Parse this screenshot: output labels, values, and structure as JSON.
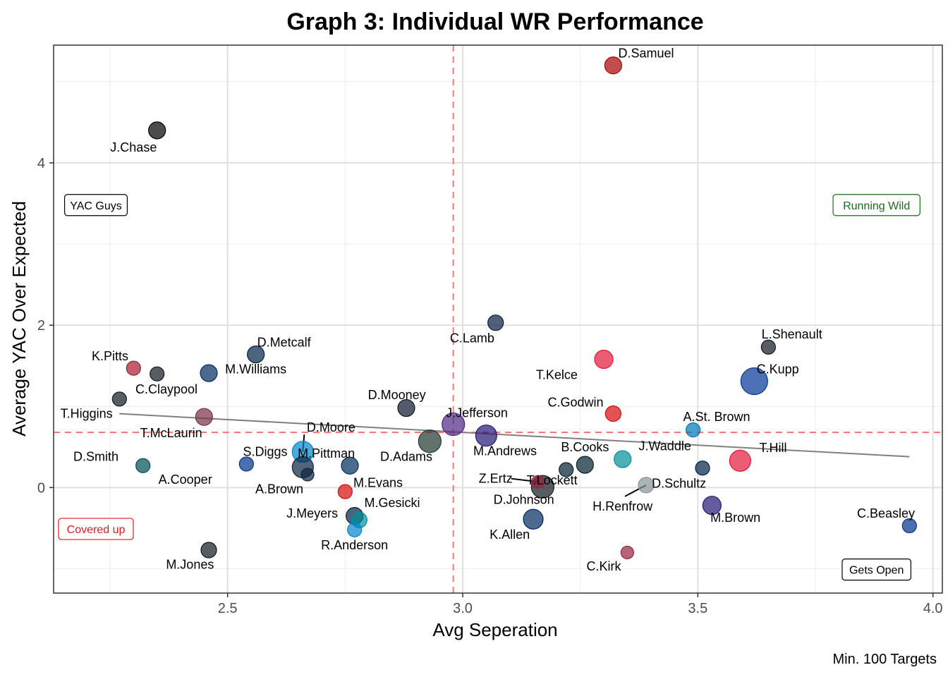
{
  "chart_data": {
    "type": "scatter",
    "title": "Graph 3: Individual WR Performance",
    "xlabel": "Avg Seperation",
    "ylabel": "Average YAC Over Expected",
    "caption": "Min. 100 Targets",
    "xlim": [
      2.13,
      4.02
    ],
    "ylim": [
      -1.3,
      5.45
    ],
    "x_ticks": [
      2.5,
      3.0,
      3.5,
      4.0
    ],
    "x_tick_labels": [
      "2.5",
      "3.0",
      "3.5",
      "4.0"
    ],
    "y_ticks": [
      0,
      2,
      4
    ],
    "y_tick_labels": [
      "0",
      "2",
      "4"
    ],
    "grid": true,
    "reference_lines": {
      "x": 2.98,
      "y": 0.68,
      "color": "#f8766d",
      "style": "dashed"
    },
    "trend_line": {
      "x": [
        2.27,
        3.95
      ],
      "y": [
        0.91,
        0.38
      ],
      "color": "#808080"
    },
    "quadrant_labels": [
      {
        "text": "YAC Guys",
        "color": "#000000",
        "x": 2.22,
        "y": 3.48
      },
      {
        "text": "Running Wild",
        "color": "#1a6b1a",
        "x": 3.88,
        "y": 3.48
      },
      {
        "text": "Covered up",
        "color": "#e41a1c",
        "x": 2.22,
        "y": -0.51
      },
      {
        "text": "Gets Open",
        "color": "#000000",
        "x": 3.88,
        "y": -1.01
      }
    ],
    "points": [
      {
        "name": "D.Samuel",
        "x": 3.32,
        "y": 5.2,
        "size": 12,
        "color": "#aa0000",
        "lx": 3.39,
        "ly": 5.35
      },
      {
        "name": "J.Chase",
        "x": 2.35,
        "y": 4.4,
        "size": 12,
        "color": "#000000",
        "lx": 2.3,
        "ly": 4.19
      },
      {
        "name": "C.Lamb",
        "x": 3.07,
        "y": 2.03,
        "size": 11,
        "color": "#041e42",
        "lx": 3.02,
        "ly": 1.84
      },
      {
        "name": "L.Shenault",
        "x": 3.65,
        "y": 1.73,
        "size": 10,
        "color": "#101820",
        "lx": 3.7,
        "ly": 1.89
      },
      {
        "name": "T.Kelce",
        "x": 3.3,
        "y": 1.58,
        "size": 13,
        "color": "#e31837",
        "lx": 3.2,
        "ly": 1.39
      },
      {
        "name": "C.Kupp",
        "x": 3.62,
        "y": 1.31,
        "size": 19,
        "color": "#003594",
        "lx": 3.67,
        "ly": 1.46
      },
      {
        "name": "D.Metcalf",
        "x": 2.56,
        "y": 1.64,
        "size": 12,
        "color": "#002244",
        "lx": 2.62,
        "ly": 1.79
      },
      {
        "name": "M.Williams",
        "x": 2.46,
        "y": 1.41,
        "size": 12,
        "color": "#002a5e",
        "lx": 2.56,
        "ly": 1.46
      },
      {
        "name": "K.Pitts",
        "x": 2.3,
        "y": 1.47,
        "size": 10,
        "color": "#a71930",
        "lx": 2.25,
        "ly": 1.62
      },
      {
        "name": "",
        "x": 2.35,
        "y": 1.4,
        "size": 10,
        "color": "#101820",
        "lx": 2.35,
        "ly": 1.4
      },
      {
        "name": "C.Claypool",
        "x": 2.27,
        "y": 1.09,
        "size": 10,
        "color": "#101820",
        "lx": 2.37,
        "ly": 1.21
      },
      {
        "name": "T.Higgins",
        "x": 2.27,
        "y": 1.09,
        "size": 0,
        "color": "#fb4f14",
        "lx": 2.2,
        "ly": 0.91
      },
      {
        "name": "D.Mooney",
        "x": 2.88,
        "y": 0.98,
        "size": 12,
        "color": "#0b162a",
        "lx": 2.86,
        "ly": 1.14
      },
      {
        "name": "C.Godwin",
        "x": 3.32,
        "y": 0.91,
        "size": 11,
        "color": "#d50a0a",
        "lx": 3.24,
        "ly": 1.05
      },
      {
        "name": "J.Jefferson",
        "x": 2.98,
        "y": 0.78,
        "size": 16,
        "color": "#4f2683",
        "lx": 3.03,
        "ly": 0.92
      },
      {
        "name": "T.McLaurin",
        "x": 2.45,
        "y": 0.87,
        "size": 12,
        "color": "#773141",
        "lx": 2.38,
        "ly": 0.67
      },
      {
        "name": "A.St. Brown",
        "x": 3.49,
        "y": 0.71,
        "size": 10,
        "color": "#0076b6",
        "lx": 3.54,
        "ly": 0.87
      },
      {
        "name": "D.Moore",
        "x": 2.66,
        "y": 0.44,
        "size": 15,
        "color": "#0085ca",
        "lx": 2.72,
        "ly": 0.74,
        "leader": true
      },
      {
        "name": "D.Adams",
        "x": 2.93,
        "y": 0.57,
        "size": 16,
        "color": "#203731",
        "lx": 2.88,
        "ly": 0.38
      },
      {
        "name": "M.Andrews",
        "x": 3.05,
        "y": 0.64,
        "size": 15,
        "color": "#241773",
        "lx": 3.09,
        "ly": 0.45
      },
      {
        "name": "T.Hill",
        "x": 3.59,
        "y": 0.33,
        "size": 15,
        "color": "#e31837",
        "lx": 3.66,
        "ly": 0.49
      },
      {
        "name": "J.Waddle",
        "x": 3.34,
        "y": 0.35,
        "size": 12,
        "color": "#008e97",
        "lx": 3.43,
        "ly": 0.51
      },
      {
        "name": "B.Cooks",
        "x": 3.26,
        "y": 0.28,
        "size": 12,
        "color": "#03202f",
        "lx": 3.26,
        "ly": 0.5
      },
      {
        "name": "",
        "x": 3.22,
        "y": 0.22,
        "size": 10,
        "color": "#03202f",
        "lx": 3.22,
        "ly": 0.22
      },
      {
        "name": "",
        "x": 3.51,
        "y": 0.24,
        "size": 10,
        "color": "#002244",
        "lx": 3.51,
        "ly": 0.24
      },
      {
        "name": "S.Diggs",
        "x": 2.54,
        "y": 0.29,
        "size": 10,
        "color": "#00338d",
        "lx": 2.58,
        "ly": 0.44
      },
      {
        "name": "M.Pittman",
        "x": 2.76,
        "y": 0.27,
        "size": 12,
        "color": "#002c5f",
        "lx": 2.71,
        "ly": 0.42
      },
      {
        "name": "D.Smith",
        "x": 2.32,
        "y": 0.27,
        "size": 10,
        "color": "#004c54",
        "lx": 2.22,
        "ly": 0.38
      },
      {
        "name": "A.Brown",
        "x": 2.66,
        "y": 0.25,
        "size": 15,
        "color": "#0c2340",
        "lx": 2.61,
        "ly": -0.02,
        "hidden_circle": false
      },
      {
        "name": "",
        "x": 2.67,
        "y": 0.16,
        "size": 9,
        "color": "#0c2340",
        "lx": 2.67,
        "ly": 0.16
      },
      {
        "name": "A.Cooper",
        "x": 2.67,
        "y": 0.16,
        "size": 0,
        "color": "#041e42",
        "lx": 2.41,
        "ly": 0.1
      },
      {
        "name": "M.Evans",
        "x": 2.75,
        "y": -0.05,
        "size": 10,
        "color": "#d50a0a",
        "lx": 2.82,
        "ly": 0.06
      },
      {
        "name": "Z.Ertz",
        "x": 3.16,
        "y": 0.07,
        "size": 9,
        "color": "#97233f",
        "lx": 3.07,
        "ly": 0.11,
        "leader": true
      },
      {
        "name": "T.Lockett",
        "x": 3.18,
        "y": 0.1,
        "size": 0,
        "color": "#002244",
        "lx": 3.19,
        "ly": 0.09
      },
      {
        "name": "D.Johnson",
        "x": 3.17,
        "y": 0.01,
        "size": 16,
        "color": "#101820",
        "lx": 3.13,
        "ly": -0.15
      },
      {
        "name": "D.Schultz",
        "x": 3.39,
        "y": 0.03,
        "size": 11,
        "color": "#869397",
        "lx": 3.46,
        "ly": 0.05,
        "leader": true
      },
      {
        "name": "H.Renfrow",
        "x": 3.39,
        "y": 0.03,
        "size": 0,
        "color": "#000000",
        "lx": 3.34,
        "ly": -0.23
      },
      {
        "name": "M.Gesicki",
        "x": 2.78,
        "y": -0.4,
        "size": 11,
        "color": "#008e97",
        "lx": 2.85,
        "ly": -0.19
      },
      {
        "name": "J.Meyers",
        "x": 2.77,
        "y": -0.35,
        "size": 12,
        "color": "#002244",
        "lx": 2.68,
        "ly": -0.32
      },
      {
        "name": "R.Anderson",
        "x": 2.77,
        "y": -0.52,
        "size": 10,
        "color": "#0085ca",
        "lx": 2.77,
        "ly": -0.71
      },
      {
        "name": "M.Brown",
        "x": 3.53,
        "y": -0.22,
        "size": 13,
        "color": "#241773",
        "lx": 3.58,
        "ly": -0.37
      },
      {
        "name": "K.Allen",
        "x": 3.15,
        "y": -0.39,
        "size": 14,
        "color": "#002a5e",
        "lx": 3.1,
        "ly": -0.58
      },
      {
        "name": "C.Beasley",
        "x": 3.95,
        "y": -0.47,
        "size": 10,
        "color": "#00338d",
        "lx": 3.9,
        "ly": -0.32
      },
      {
        "name": "C.Kirk",
        "x": 3.35,
        "y": -0.8,
        "size": 9,
        "color": "#97233f",
        "lx": 3.3,
        "ly": -0.97
      },
      {
        "name": "M.Jones",
        "x": 2.46,
        "y": -0.77,
        "size": 11,
        "color": "#101820",
        "lx": 2.42,
        "ly": -0.95
      }
    ]
  }
}
